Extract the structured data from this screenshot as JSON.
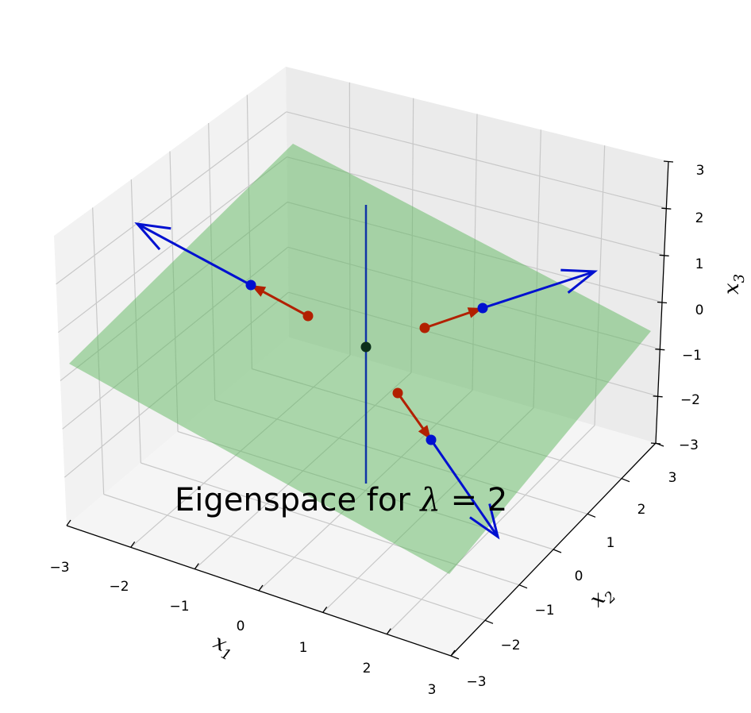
{
  "chart_data": {
    "type": "3d-vector-field",
    "title": "",
    "annotation": {
      "prefix": "Eigenspace for ",
      "symbol": "λ",
      "suffix": " = 2"
    },
    "axes": {
      "x": {
        "label": "x",
        "subscript": "1",
        "range": [
          -3,
          3
        ],
        "ticks": [
          "−3",
          "−2",
          "−1",
          "0",
          "1",
          "2",
          "3"
        ]
      },
      "y": {
        "label": "x",
        "subscript": "2",
        "range": [
          -3,
          3
        ],
        "ticks": [
          "−3",
          "−2",
          "−1",
          "0",
          "1",
          "2",
          "3"
        ]
      },
      "z": {
        "label": "x",
        "subscript": "3",
        "range": [
          -3,
          3
        ],
        "ticks": [
          "−3",
          "−2",
          "−1",
          "0",
          "1",
          "2",
          "3"
        ]
      }
    },
    "grid": true,
    "plane": {
      "description": "eigenspace plane through origin",
      "color": "#5fb85f",
      "opacity": 0.5
    },
    "origin_point": {
      "x": 0,
      "y": 0,
      "z": 0,
      "color": "#0b2f1a"
    },
    "normal_line": {
      "z_from": -3,
      "z_to": 3,
      "color": "#1034a6"
    },
    "vectors": [
      {
        "name": "v1",
        "start": [
          -1,
          1.5,
          0.5
        ],
        "mid": [
          -2,
          1.5,
          1
        ],
        "end": [
          -4,
          1.5,
          2
        ]
      },
      {
        "name": "v2",
        "start": [
          0.5,
          1.5,
          -0.5
        ],
        "mid": [
          1,
          3,
          -0.5
        ],
        "end": [
          2,
          6,
          -0.5
        ]
      },
      {
        "name": "v3",
        "start": [
          0.5,
          -0.5,
          -1.5
        ],
        "mid": [
          1,
          -1,
          -2.5
        ],
        "end": [
          2,
          -2,
          -4.5
        ]
      }
    ],
    "colors": {
      "input_vector": "#b22000",
      "image_vector": "#0010d0"
    }
  }
}
